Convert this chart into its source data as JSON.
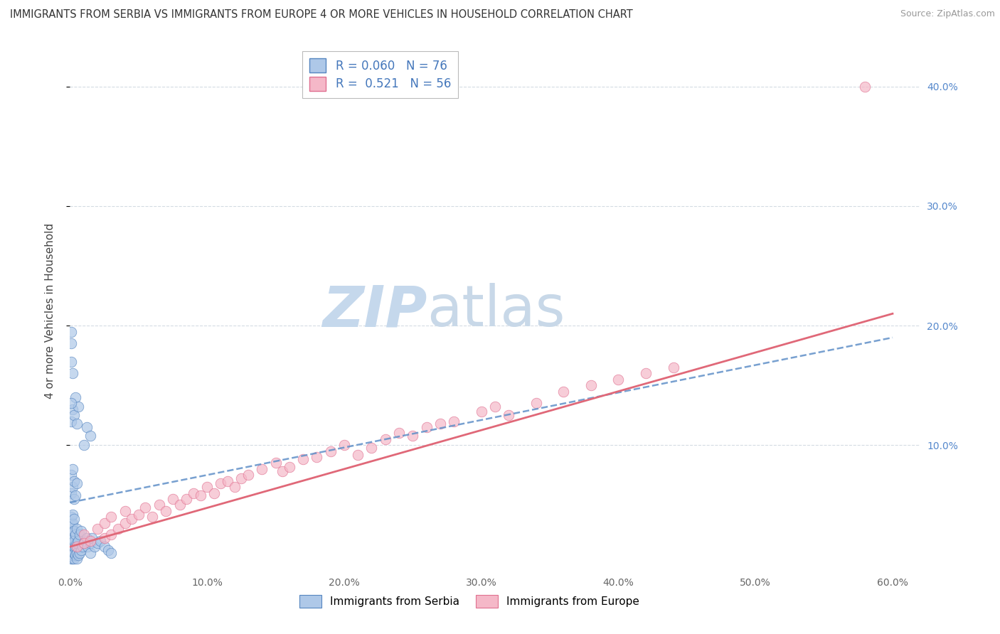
{
  "title": "IMMIGRANTS FROM SERBIA VS IMMIGRANTS FROM EUROPE 4 OR MORE VEHICLES IN HOUSEHOLD CORRELATION CHART",
  "source": "Source: ZipAtlas.com",
  "ylabel": "4 or more Vehicles in Household",
  "xlim": [
    0.0,
    0.62
  ],
  "ylim": [
    -0.005,
    0.43
  ],
  "x_ticks": [
    0.0,
    0.1,
    0.2,
    0.3,
    0.4,
    0.5,
    0.6
  ],
  "x_tick_labels": [
    "0.0%",
    "10.0%",
    "20.0%",
    "30.0%",
    "40.0%",
    "50.0%",
    "60.0%"
  ],
  "y_ticks": [
    0.1,
    0.2,
    0.3,
    0.4
  ],
  "y_tick_labels": [
    "10.0%",
    "20.0%",
    "30.0%",
    "40.0%"
  ],
  "serbia_color": "#aec8e8",
  "europe_color": "#f5b8c8",
  "serbia_edge": "#5585c0",
  "europe_edge": "#e07090",
  "serbia_R": 0.06,
  "serbia_N": 76,
  "europe_R": 0.521,
  "europe_N": 56,
  "trend_serbia_color": "#6090c8",
  "trend_europe_color": "#e06878",
  "legend_serbia_label": "Immigrants from Serbia",
  "legend_europe_label": "Immigrants from Europe",
  "watermark_zip": "ZIP",
  "watermark_atlas": "atlas",
  "watermark_color_zip": "#c5d8ec",
  "watermark_color_atlas": "#c8d8e8",
  "background_color": "#ffffff",
  "grid_color": "#d0d8e0",
  "serbia_x": [
    0.001,
    0.001,
    0.001,
    0.001,
    0.001,
    0.001,
    0.001,
    0.001,
    0.001,
    0.001,
    0.001,
    0.001,
    0.001,
    0.002,
    0.002,
    0.002,
    0.002,
    0.002,
    0.002,
    0.002,
    0.002,
    0.003,
    0.003,
    0.003,
    0.003,
    0.003,
    0.003,
    0.004,
    0.004,
    0.004,
    0.005,
    0.005,
    0.005,
    0.005,
    0.006,
    0.006,
    0.007,
    0.007,
    0.008,
    0.008,
    0.009,
    0.01,
    0.011,
    0.012,
    0.013,
    0.015,
    0.015,
    0.016,
    0.018,
    0.02,
    0.022,
    0.025,
    0.028,
    0.03,
    0.001,
    0.001,
    0.002,
    0.002,
    0.003,
    0.003,
    0.004,
    0.005,
    0.001,
    0.002,
    0.003,
    0.004,
    0.005,
    0.006,
    0.01,
    0.012,
    0.015,
    0.001,
    0.001,
    0.002,
    0.001,
    0.001
  ],
  "serbia_y": [
    0.005,
    0.008,
    0.01,
    0.012,
    0.015,
    0.018,
    0.02,
    0.022,
    0.025,
    0.028,
    0.03,
    0.035,
    0.04,
    0.005,
    0.008,
    0.012,
    0.018,
    0.022,
    0.028,
    0.035,
    0.042,
    0.005,
    0.01,
    0.015,
    0.02,
    0.028,
    0.038,
    0.008,
    0.015,
    0.025,
    0.005,
    0.01,
    0.018,
    0.03,
    0.008,
    0.02,
    0.01,
    0.025,
    0.012,
    0.028,
    0.015,
    0.018,
    0.02,
    0.022,
    0.015,
    0.01,
    0.018,
    0.022,
    0.015,
    0.018,
    0.02,
    0.015,
    0.012,
    0.01,
    0.06,
    0.075,
    0.065,
    0.08,
    0.055,
    0.07,
    0.058,
    0.068,
    0.12,
    0.13,
    0.125,
    0.14,
    0.118,
    0.132,
    0.1,
    0.115,
    0.108,
    0.17,
    0.185,
    0.16,
    0.195,
    0.135
  ],
  "europe_x": [
    0.005,
    0.01,
    0.01,
    0.015,
    0.02,
    0.025,
    0.025,
    0.03,
    0.03,
    0.035,
    0.04,
    0.04,
    0.045,
    0.05,
    0.055,
    0.06,
    0.065,
    0.07,
    0.075,
    0.08,
    0.085,
    0.09,
    0.095,
    0.1,
    0.105,
    0.11,
    0.115,
    0.12,
    0.125,
    0.13,
    0.14,
    0.15,
    0.155,
    0.16,
    0.17,
    0.18,
    0.19,
    0.2,
    0.21,
    0.22,
    0.23,
    0.24,
    0.25,
    0.26,
    0.27,
    0.28,
    0.3,
    0.31,
    0.32,
    0.34,
    0.36,
    0.38,
    0.4,
    0.42,
    0.44,
    0.58
  ],
  "europe_y": [
    0.015,
    0.025,
    0.018,
    0.02,
    0.03,
    0.022,
    0.035,
    0.025,
    0.04,
    0.03,
    0.035,
    0.045,
    0.038,
    0.042,
    0.048,
    0.04,
    0.05,
    0.045,
    0.055,
    0.05,
    0.055,
    0.06,
    0.058,
    0.065,
    0.06,
    0.068,
    0.07,
    0.065,
    0.072,
    0.075,
    0.08,
    0.085,
    0.078,
    0.082,
    0.088,
    0.09,
    0.095,
    0.1,
    0.092,
    0.098,
    0.105,
    0.11,
    0.108,
    0.115,
    0.118,
    0.12,
    0.128,
    0.132,
    0.125,
    0.135,
    0.145,
    0.15,
    0.155,
    0.16,
    0.165,
    0.4
  ],
  "trend_serbia_start_y": 0.052,
  "trend_serbia_end_y": 0.19,
  "trend_europe_start_y": 0.015,
  "trend_europe_end_y": 0.21
}
